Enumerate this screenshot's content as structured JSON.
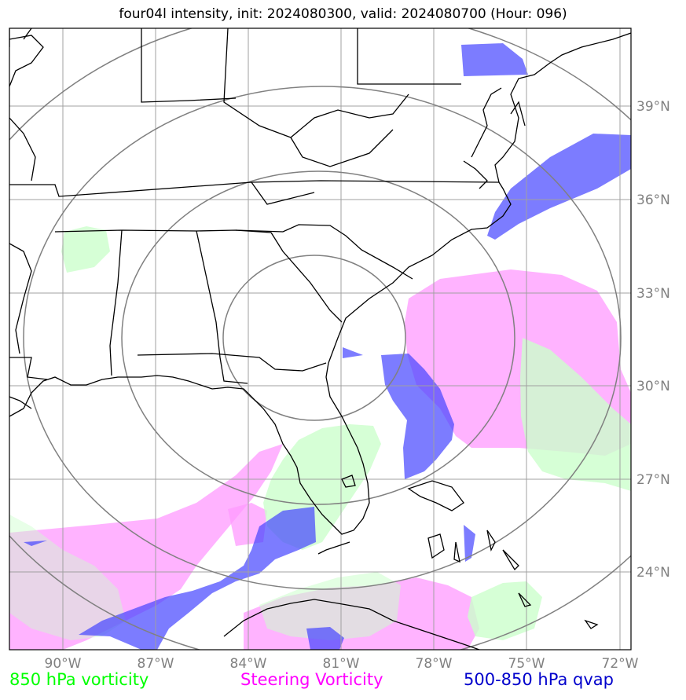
{
  "title": "four04l intensity, init: 2024080300, valid: 2024080700 (Hour: 096)",
  "lon_labels": [
    "90°W",
    "87°W",
    "84°W",
    "81°W",
    "78°W",
    "75°W",
    "72°W"
  ],
  "lat_labels": [
    "39°N",
    "36°N",
    "33°N",
    "30°N",
    "27°N",
    "24°N"
  ],
  "legend": [
    {
      "label": "850 hPa vorticity",
      "color": "#00ff00"
    },
    {
      "label": "Steering Vorticity",
      "color": "#ff00ff"
    },
    {
      "label": "500-850 hPa qvap",
      "color": "#0000cc"
    }
  ],
  "colors": {
    "vorticity_850": "#ccffcc",
    "steering_vorticity": "#ff99ff",
    "qvap": "#4444ff",
    "grid": "#a0a0a0",
    "range_rings": "#808080",
    "coastline": "#000000"
  }
}
